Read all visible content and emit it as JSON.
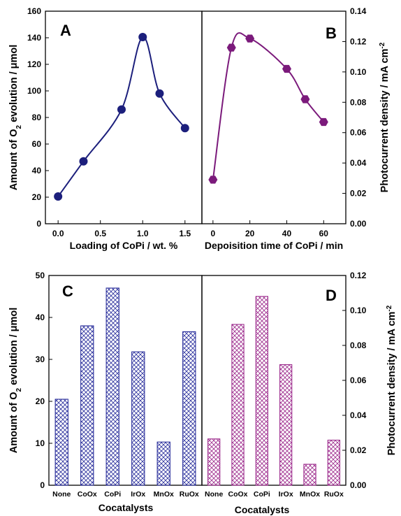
{
  "chart_data": [
    {
      "panel": "A",
      "type": "line",
      "xlabel": "Loading of CoPi / wt. %",
      "ylabel": "Amount of O2 evolution / μmol",
      "xlim": [
        -0.15,
        1.7
      ],
      "ylim": [
        0,
        160
      ],
      "xticks": [
        "0.0",
        "0.5",
        "1.0",
        "1.5"
      ],
      "yticks": [
        "0",
        "20",
        "40",
        "60",
        "80",
        "100",
        "120",
        "140",
        "160"
      ],
      "x": [
        0.0,
        0.3,
        0.75,
        1.0,
        1.2,
        1.5
      ],
      "y": [
        20.5,
        47,
        86,
        140.5,
        98,
        72
      ],
      "color": "#1c1f7c",
      "marker": "circle"
    },
    {
      "panel": "B",
      "type": "line",
      "xlabel": "Depoisition time of CoPi / min",
      "ylabel": "Photocurrent density / mA cm-2",
      "xlim": [
        -6,
        72
      ],
      "ylim": [
        0.0,
        0.14
      ],
      "xticks": [
        "0",
        "20",
        "40",
        "60"
      ],
      "yticks": [
        "0.00",
        "0.02",
        "0.04",
        "0.06",
        "0.08",
        "0.10",
        "0.12",
        "0.14"
      ],
      "x": [
        0,
        10,
        20,
        40,
        50,
        60
      ],
      "y": [
        0.029,
        0.116,
        0.122,
        0.102,
        0.082,
        0.067
      ],
      "color": "#7b1a7b",
      "marker": "hexagon"
    },
    {
      "panel": "C",
      "type": "bar",
      "xlabel": "Cocatalysts",
      "ylabel": "Amount of O2 evolution / μmol",
      "ylim": [
        0,
        50
      ],
      "yticks": [
        "0",
        "10",
        "20",
        "30",
        "40",
        "50"
      ],
      "categories": [
        "None",
        "CoOx",
        "CoPi",
        "IrOx",
        "MnOx",
        "RuOx"
      ],
      "values": [
        20.5,
        38,
        47,
        31.8,
        10.3,
        36.6
      ],
      "color": "#2a2f9c"
    },
    {
      "panel": "D",
      "type": "bar",
      "xlabel": "Cocatalysts",
      "ylabel": "Photocurrent density / mA cm-2",
      "ylim": [
        0,
        0.12
      ],
      "yticks": [
        "0.00",
        "0.02",
        "0.04",
        "0.06",
        "0.08",
        "0.10",
        "0.12"
      ],
      "categories": [
        "None",
        "CoOx",
        "CoPi",
        "IrOx",
        "MnOx",
        "RuOx"
      ],
      "values": [
        0.0265,
        0.092,
        0.108,
        0.069,
        0.012,
        0.0258
      ],
      "color": "#9c2a8c"
    }
  ]
}
